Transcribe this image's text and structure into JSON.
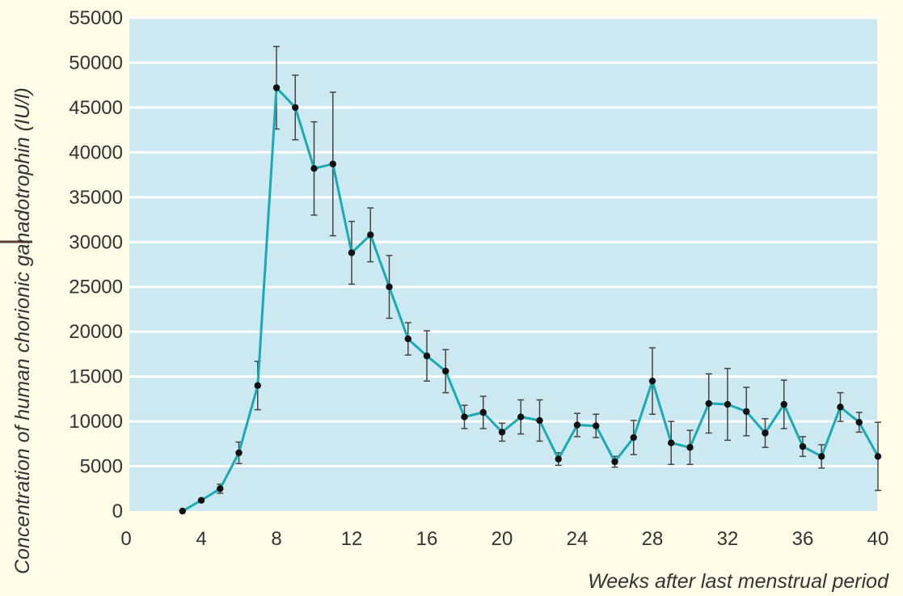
{
  "chart_data": {
    "type": "line",
    "title": "",
    "xlabel": "Weeks after last menstrual period",
    "ylabel": "Concentration of human chorionic ganadotrophin (IU/l)",
    "xlim": [
      0,
      40
    ],
    "ylim": [
      0,
      55000
    ],
    "x_ticks": [
      "0",
      "4",
      "8",
      "12",
      "16",
      "20",
      "24",
      "28",
      "32",
      "36",
      "40"
    ],
    "y_ticks": [
      "0",
      "5000",
      "10000",
      "15000",
      "20000",
      "25000",
      "30000",
      "35000",
      "40000",
      "45000",
      "50000",
      "55000"
    ],
    "grid": true,
    "series": [
      {
        "x": [
          3,
          4,
          5,
          6,
          7,
          8,
          9,
          10,
          11,
          12,
          13,
          14,
          15,
          16,
          17,
          18,
          19,
          20,
          21,
          22,
          23,
          24,
          25,
          26,
          27,
          28,
          29,
          30,
          31,
          32,
          33,
          34,
          35,
          36,
          37,
          38,
          39,
          40
        ],
        "y": [
          0,
          1200,
          2500,
          6500,
          14000,
          47200,
          45000,
          38200,
          38700,
          28800,
          30800,
          25000,
          19200,
          17300,
          15600,
          10500,
          11000,
          8800,
          10500,
          10100,
          5800,
          9600,
          9500,
          5500,
          8200,
          14500,
          7600,
          7100,
          12000,
          11900,
          11100,
          8700,
          11900,
          7200,
          6100,
          11600,
          9900,
          6100
        ],
        "err": [
          0,
          0,
          500,
          1200,
          2700,
          4600,
          3600,
          5200,
          8000,
          3500,
          3000,
          3500,
          1800,
          2800,
          2400,
          1300,
          1800,
          1000,
          1900,
          2300,
          700,
          1300,
          1300,
          600,
          1900,
          3700,
          2400,
          1900,
          3300,
          4000,
          2700,
          1600,
          2700,
          1100,
          1300,
          1600,
          1100,
          3800
        ]
      }
    ],
    "colors": {
      "line": "#1aaab3",
      "marker": "#111111",
      "errorbar": "#444444",
      "plot_background": "#cce8f0",
      "gridline": "#ffffff",
      "page_background": "#fffde8",
      "left_rule": "#5a3d3d"
    }
  }
}
